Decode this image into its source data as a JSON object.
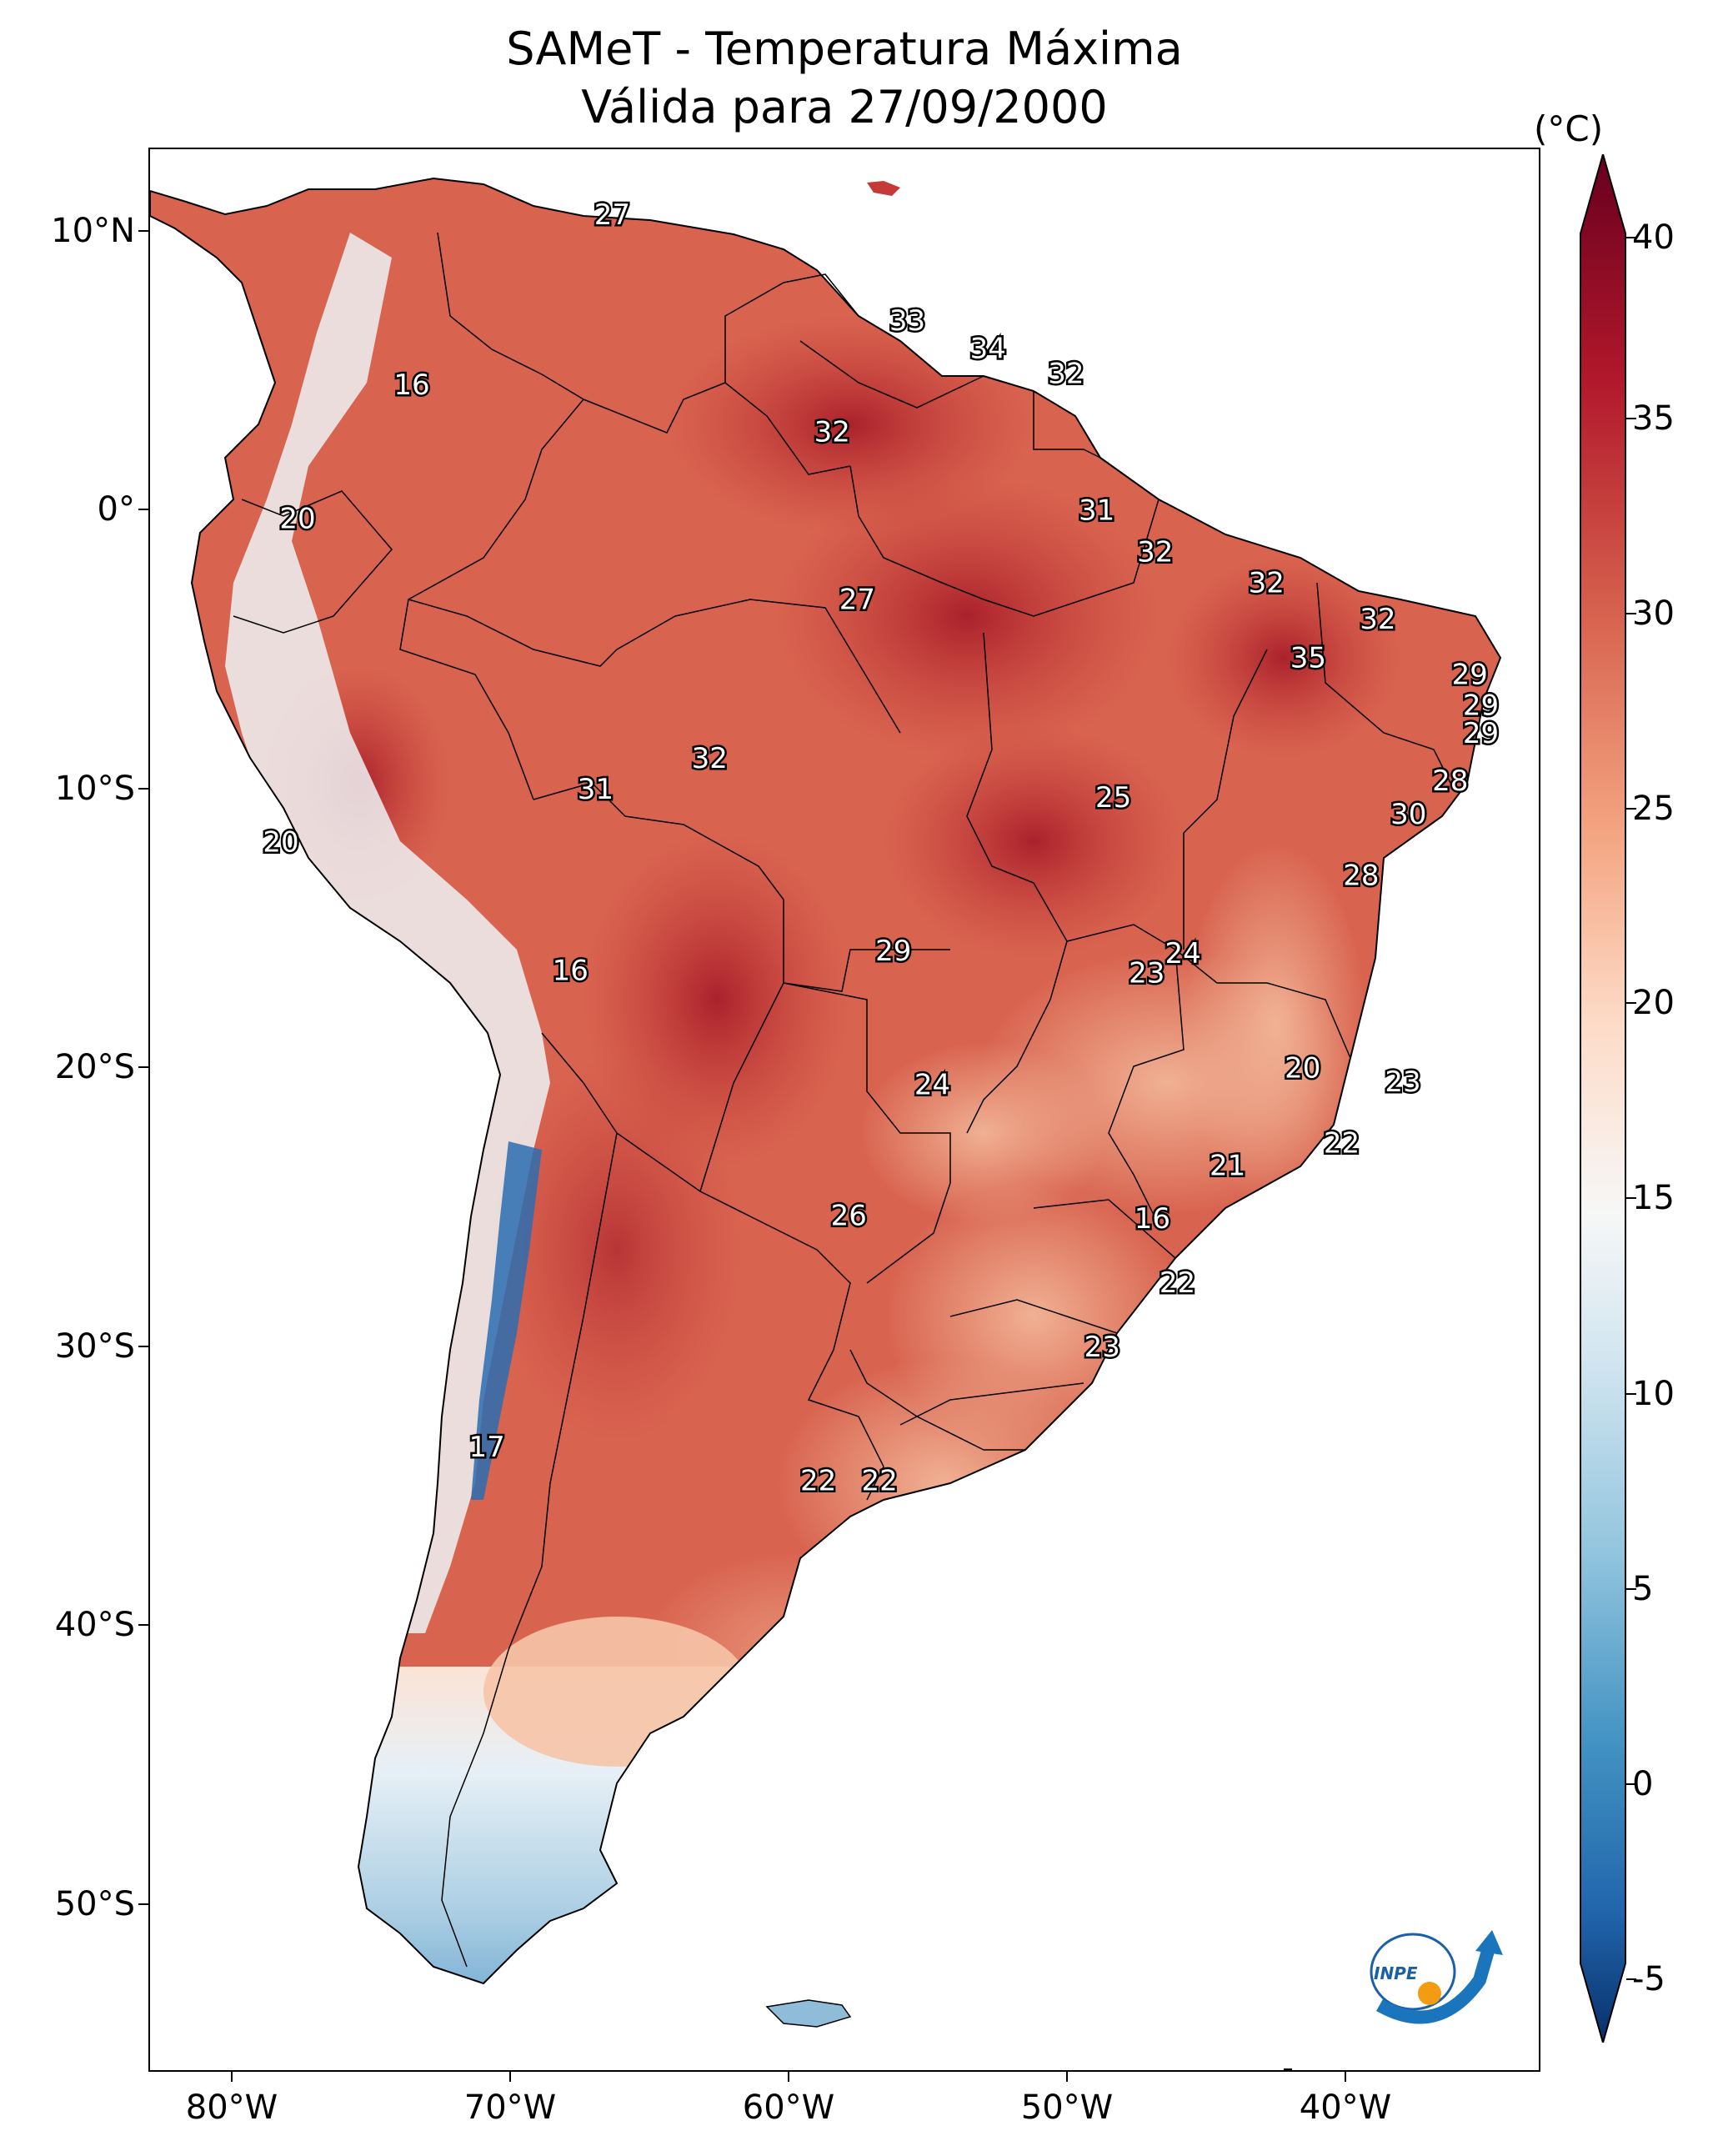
{
  "title": {
    "line1": "SAMeT - Temperatura Máxima",
    "line2": "Válida para 27/09/2000"
  },
  "colorbar": {
    "unit": "(°C)",
    "ticks": [
      "40",
      "35",
      "30",
      "25",
      "20",
      "15",
      "10",
      "5",
      "0",
      "-5"
    ],
    "tick_values": [
      40,
      35,
      30,
      25,
      20,
      15,
      10,
      5,
      0,
      -5
    ],
    "range": [
      -5,
      40
    ],
    "colors": [
      "#08306b",
      "#2166ac",
      "#4393c3",
      "#92c5de",
      "#d1e5f0",
      "#f7f7f7",
      "#fddbc7",
      "#f4a582",
      "#d6604d",
      "#b2182b",
      "#67001f"
    ]
  },
  "axes": {
    "lat_ticks": [
      "10°N",
      "0°",
      "10°S",
      "20°S",
      "30°S",
      "40°S",
      "50°S"
    ],
    "lat_values": [
      10,
      0,
      -10,
      -20,
      -30,
      -40,
      -50
    ],
    "lon_ticks": [
      "80°W",
      "70°W",
      "60°W",
      "50°W",
      "40°W"
    ],
    "lon_values": [
      -80,
      -70,
      -60,
      -50,
      -40
    ],
    "lon_range": [
      -83,
      -33
    ],
    "lat_range": [
      13,
      -56
    ]
  },
  "temperature_labels": [
    {
      "value": "27",
      "lon": -66.4,
      "lat": 10.6
    },
    {
      "value": "33",
      "lon": -55.8,
      "lat": 6.8
    },
    {
      "value": "34",
      "lon": -52.9,
      "lat": 5.8
    },
    {
      "value": "32",
      "lon": -50.1,
      "lat": 4.9
    },
    {
      "value": "16",
      "lon": -73.6,
      "lat": 4.5
    },
    {
      "value": "32",
      "lon": -58.5,
      "lat": 2.8
    },
    {
      "value": "31",
      "lon": -49.0,
      "lat": 0.0
    },
    {
      "value": "20",
      "lon": -77.7,
      "lat": -0.3
    },
    {
      "value": "32",
      "lon": -46.9,
      "lat": -1.5
    },
    {
      "value": "32",
      "lon": -42.9,
      "lat": -2.6
    },
    {
      "value": "27",
      "lon": -57.6,
      "lat": -3.2
    },
    {
      "value": "32",
      "lon": -38.9,
      "lat": -3.9
    },
    {
      "value": "35",
      "lon": -41.4,
      "lat": -5.3
    },
    {
      "value": "29",
      "lon": -35.6,
      "lat": -5.9
    },
    {
      "value": "29",
      "lon": -35.2,
      "lat": -7.0
    },
    {
      "value": "29",
      "lon": -35.2,
      "lat": -8.0
    },
    {
      "value": "32",
      "lon": -62.9,
      "lat": -8.9
    },
    {
      "value": "28",
      "lon": -36.3,
      "lat": -9.7
    },
    {
      "value": "31",
      "lon": -67.0,
      "lat": -10.0
    },
    {
      "value": "25",
      "lon": -48.4,
      "lat": -10.3
    },
    {
      "value": "30",
      "lon": -37.8,
      "lat": -10.9
    },
    {
      "value": "20",
      "lon": -78.3,
      "lat": -11.9
    },
    {
      "value": "28",
      "lon": -39.5,
      "lat": -13.1
    },
    {
      "value": "24",
      "lon": -45.9,
      "lat": -15.9
    },
    {
      "value": "29",
      "lon": -56.3,
      "lat": -15.8
    },
    {
      "value": "23",
      "lon": -47.2,
      "lat": -16.6
    },
    {
      "value": "16",
      "lon": -67.9,
      "lat": -16.5
    },
    {
      "value": "20",
      "lon": -41.6,
      "lat": -20.0
    },
    {
      "value": "23",
      "lon": -38.0,
      "lat": -20.5
    },
    {
      "value": "24",
      "lon": -54.9,
      "lat": -20.6
    },
    {
      "value": "22",
      "lon": -40.2,
      "lat": -22.7
    },
    {
      "value": "21",
      "lon": -44.3,
      "lat": -23.5
    },
    {
      "value": "26",
      "lon": -57.9,
      "lat": -25.3
    },
    {
      "value": "16",
      "lon": -47.0,
      "lat": -25.4
    },
    {
      "value": "22",
      "lon": -46.1,
      "lat": -27.7
    },
    {
      "value": "23",
      "lon": -48.8,
      "lat": -30.0
    },
    {
      "value": "17",
      "lon": -70.9,
      "lat": -33.6
    },
    {
      "value": "22",
      "lon": -59.0,
      "lat": -34.8
    },
    {
      "value": "22",
      "lon": -56.8,
      "lat": -34.8
    }
  ],
  "logo": {
    "text": "INPE"
  }
}
